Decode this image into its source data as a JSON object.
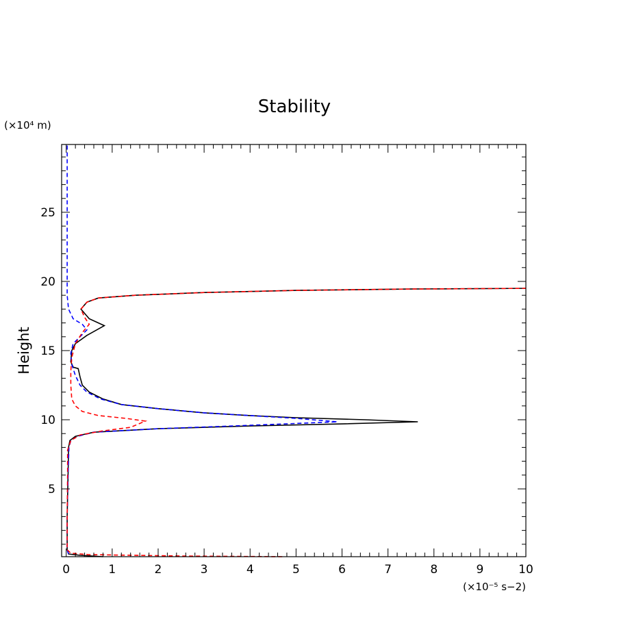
{
  "chart_data": {
    "type": "line",
    "title": "Stability",
    "ylabel": "Height",
    "y_unit_label": "(×10⁴ m)",
    "x_unit_label": "(×10⁻⁵ s−2)",
    "xlim": [
      -0.1,
      10
    ],
    "ylim": [
      0.1,
      29.9
    ],
    "x_ticks": [
      "0",
      "1",
      "2",
      "3",
      "4",
      "5",
      "6",
      "7",
      "8",
      "9",
      "10"
    ],
    "y_ticks": [
      "5",
      "10",
      "15",
      "20",
      "25"
    ],
    "series": [
      {
        "color": "#000000",
        "dash": "solid",
        "points": [
          [
            0.8,
            0.1
          ],
          [
            0.3,
            0.2
          ],
          [
            0.05,
            0.3
          ],
          [
            0.02,
            0.6
          ],
          [
            0.02,
            3
          ],
          [
            0.04,
            6
          ],
          [
            0.05,
            8
          ],
          [
            0.08,
            8.5
          ],
          [
            0.2,
            8.8
          ],
          [
            0.6,
            9.1
          ],
          [
            2.0,
            9.35
          ],
          [
            4.0,
            9.55
          ],
          [
            6.0,
            9.7
          ],
          [
            7.65,
            9.85
          ],
          [
            6.5,
            10.0
          ],
          [
            5.0,
            10.15
          ],
          [
            4.0,
            10.3
          ],
          [
            3.0,
            10.5
          ],
          [
            2.0,
            10.8
          ],
          [
            1.2,
            11.1
          ],
          [
            0.8,
            11.5
          ],
          [
            0.5,
            12.0
          ],
          [
            0.35,
            12.5
          ],
          [
            0.3,
            13.1
          ],
          [
            0.26,
            13.7
          ],
          [
            0.15,
            13.8
          ],
          [
            0.1,
            14.2
          ],
          [
            0.12,
            15.0
          ],
          [
            0.2,
            15.5
          ],
          [
            0.45,
            16.1
          ],
          [
            0.83,
            16.8
          ],
          [
            0.7,
            17.0
          ],
          [
            0.5,
            17.3
          ],
          [
            0.32,
            18.0
          ],
          [
            0.45,
            18.5
          ],
          [
            0.7,
            18.8
          ],
          [
            1.5,
            19.0
          ],
          [
            3.0,
            19.2
          ],
          [
            5.0,
            19.35
          ],
          [
            7.5,
            19.45
          ],
          [
            10.0,
            19.5
          ]
        ]
      },
      {
        "color": "#0000ff",
        "dash": "dashed",
        "points": [
          [
            0.05,
            0.3
          ],
          [
            0.02,
            0.6
          ],
          [
            0.02,
            3
          ],
          [
            0.04,
            6
          ],
          [
            0.06,
            8
          ],
          [
            0.1,
            8.5
          ],
          [
            0.25,
            8.8
          ],
          [
            0.6,
            9.1
          ],
          [
            2.0,
            9.35
          ],
          [
            4.0,
            9.6
          ],
          [
            5.9,
            9.85
          ],
          [
            5.0,
            10.1
          ],
          [
            4.0,
            10.3
          ],
          [
            3.0,
            10.5
          ],
          [
            2.0,
            10.8
          ],
          [
            1.2,
            11.1
          ],
          [
            0.75,
            11.5
          ],
          [
            0.45,
            12.0
          ],
          [
            0.3,
            12.5
          ],
          [
            0.2,
            13.2
          ],
          [
            0.12,
            14.0
          ],
          [
            0.1,
            14.8
          ],
          [
            0.15,
            15.5
          ],
          [
            0.3,
            16.0
          ],
          [
            0.45,
            16.5
          ],
          [
            0.35,
            16.9
          ],
          [
            0.15,
            17.3
          ],
          [
            0.05,
            18.0
          ],
          [
            0.02,
            19
          ],
          [
            0.02,
            22
          ],
          [
            0.02,
            26
          ],
          [
            0.02,
            29.9
          ]
        ]
      },
      {
        "color": "#ff0000",
        "dash": "dashed",
        "points": [
          [
            4.7,
            0.1
          ],
          [
            2.5,
            0.15
          ],
          [
            0.5,
            0.25
          ],
          [
            0.1,
            0.35
          ],
          [
            0.02,
            0.6
          ],
          [
            0.02,
            3
          ],
          [
            0.03,
            6
          ],
          [
            0.03,
            7.8
          ],
          [
            0.1,
            8.5
          ],
          [
            0.3,
            8.9
          ],
          [
            0.8,
            9.2
          ],
          [
            1.4,
            9.45
          ],
          [
            1.72,
            9.9
          ],
          [
            1.3,
            10.1
          ],
          [
            0.7,
            10.3
          ],
          [
            0.35,
            10.6
          ],
          [
            0.2,
            11.0
          ],
          [
            0.12,
            11.5
          ],
          [
            0.1,
            12.5
          ],
          [
            0.1,
            13.5
          ],
          [
            0.12,
            14.5
          ],
          [
            0.2,
            15.5
          ],
          [
            0.35,
            16.3
          ],
          [
            0.5,
            16.9
          ],
          [
            0.4,
            17.4
          ],
          [
            0.32,
            18.0
          ],
          [
            0.45,
            18.5
          ],
          [
            0.7,
            18.8
          ],
          [
            1.5,
            19.0
          ],
          [
            3.0,
            19.2
          ],
          [
            5.0,
            19.35
          ],
          [
            7.5,
            19.45
          ],
          [
            10.0,
            19.5
          ]
        ]
      }
    ]
  }
}
